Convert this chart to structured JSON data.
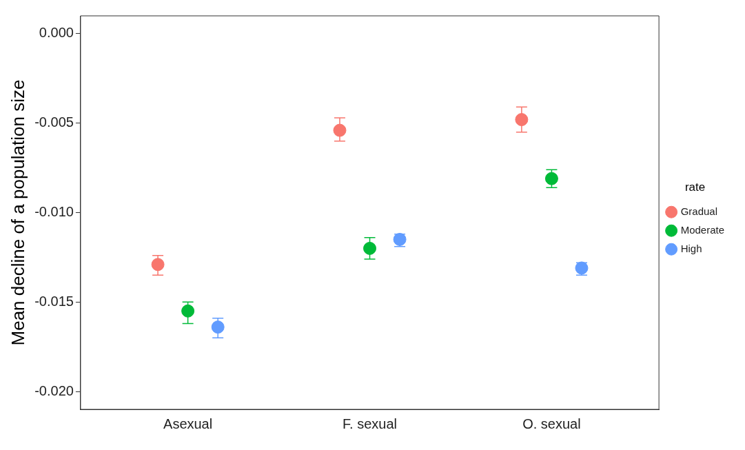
{
  "chart_data": {
    "type": "scatter",
    "ylabel": "Mean decline of a population size",
    "legend_title": "rate",
    "legend": "right",
    "grid": false,
    "marker": "circle",
    "categories": [
      "Asexual",
      "F. sexual",
      "O. sexual"
    ],
    "ylim": [
      -0.021,
      0.001
    ],
    "yticks": [
      {
        "value": 0,
        "label": "0.000"
      },
      {
        "value": -0.005,
        "label": "-0.005"
      },
      {
        "value": -0.01,
        "label": "-0.010"
      },
      {
        "value": -0.015,
        "label": "-0.015"
      },
      {
        "value": -0.02,
        "label": "-0.020"
      }
    ],
    "series": [
      {
        "name": "Gradual",
        "color": "#f8766d",
        "values": [
          -0.0129,
          -0.0054,
          -0.0048
        ],
        "errors": [
          [
            -0.0135,
            -0.0124
          ],
          [
            -0.006,
            -0.0047
          ],
          [
            -0.0055,
            -0.0041
          ]
        ]
      },
      {
        "name": "Moderate",
        "color": "#00ba38",
        "values": [
          -0.0155,
          -0.012,
          -0.0081
        ],
        "errors": [
          [
            -0.0162,
            -0.015
          ],
          [
            -0.0126,
            -0.0114
          ],
          [
            -0.0086,
            -0.0076
          ]
        ]
      },
      {
        "name": "High",
        "color": "#619cff",
        "values": [
          -0.0164,
          -0.0115,
          -0.0131
        ],
        "errors": [
          [
            -0.017,
            -0.0159
          ],
          [
            -0.0119,
            -0.0112
          ],
          [
            -0.0135,
            -0.0128
          ]
        ]
      }
    ]
  }
}
